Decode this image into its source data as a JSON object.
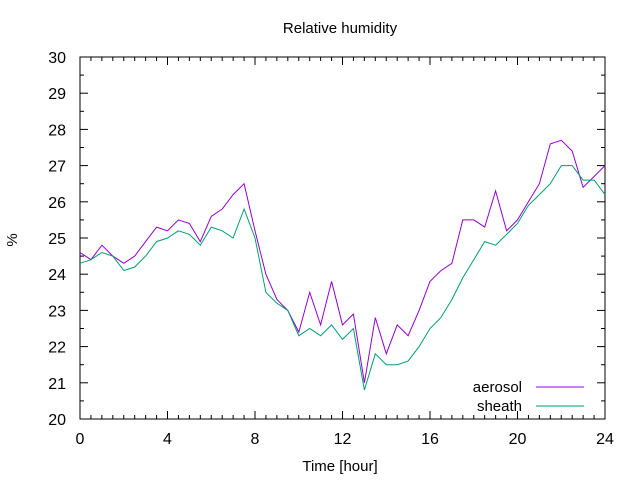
{
  "chart_data": {
    "type": "line",
    "title": "Relative humidity",
    "xlabel": "Time [hour]",
    "ylabel": "%",
    "xlim": [
      0,
      24
    ],
    "ylim": [
      20,
      30
    ],
    "xticks": [
      0,
      4,
      8,
      12,
      16,
      20,
      24
    ],
    "yticks": [
      20,
      21,
      22,
      23,
      24,
      25,
      26,
      27,
      28,
      29,
      30
    ],
    "grid": false,
    "legend_position": "bottom-right",
    "series": [
      {
        "name": "aerosol",
        "color": "#9400d3",
        "x": [
          0,
          0.5,
          1,
          1.5,
          2,
          2.5,
          3,
          3.5,
          4,
          4.5,
          5,
          5.5,
          6,
          6.5,
          7,
          7.5,
          8,
          8.5,
          9,
          9.5,
          10,
          10.5,
          11,
          11.5,
          12,
          12.5,
          13,
          13.5,
          14,
          14.5,
          15,
          15.5,
          16,
          16.5,
          17,
          17.5,
          18,
          18.5,
          19,
          19.5,
          20,
          20.5,
          21,
          21.5,
          22,
          22.5,
          23,
          23.5,
          24
        ],
        "y": [
          24.6,
          24.4,
          24.8,
          24.5,
          24.3,
          24.5,
          24.9,
          25.3,
          25.2,
          25.5,
          25.4,
          24.9,
          25.6,
          25.8,
          26.2,
          26.5,
          25.2,
          24.0,
          23.3,
          23.0,
          22.4,
          23.5,
          22.6,
          23.8,
          22.6,
          22.9,
          21.0,
          22.8,
          21.8,
          22.6,
          22.3,
          23.0,
          23.8,
          24.1,
          24.3,
          25.5,
          25.5,
          25.3,
          26.3,
          25.2,
          25.5,
          26.0,
          26.5,
          27.6,
          27.7,
          27.4,
          26.4,
          26.7,
          27.0
        ]
      },
      {
        "name": "sheath",
        "color": "#009e73",
        "x": [
          0,
          0.5,
          1,
          1.5,
          2,
          2.5,
          3,
          3.5,
          4,
          4.5,
          5,
          5.5,
          6,
          6.5,
          7,
          7.5,
          8,
          8.5,
          9,
          9.5,
          10,
          10.5,
          11,
          11.5,
          12,
          12.5,
          13,
          13.5,
          14,
          14.5,
          15,
          15.5,
          16,
          16.5,
          17,
          17.5,
          18,
          18.5,
          19,
          19.5,
          20,
          20.5,
          21,
          21.5,
          22,
          22.5,
          23,
          23.5,
          24
        ],
        "y": [
          24.3,
          24.4,
          24.6,
          24.5,
          24.1,
          24.2,
          24.5,
          24.9,
          25.0,
          25.2,
          25.1,
          24.8,
          25.3,
          25.2,
          25.0,
          25.8,
          25.0,
          23.5,
          23.2,
          23.0,
          22.3,
          22.5,
          22.3,
          22.6,
          22.2,
          22.5,
          20.8,
          21.8,
          21.5,
          21.5,
          21.6,
          22.0,
          22.5,
          22.8,
          23.3,
          23.9,
          24.4,
          24.9,
          24.8,
          25.1,
          25.4,
          25.9,
          26.2,
          26.5,
          27.0,
          27.0,
          26.6,
          26.6,
          26.2
        ]
      }
    ]
  }
}
